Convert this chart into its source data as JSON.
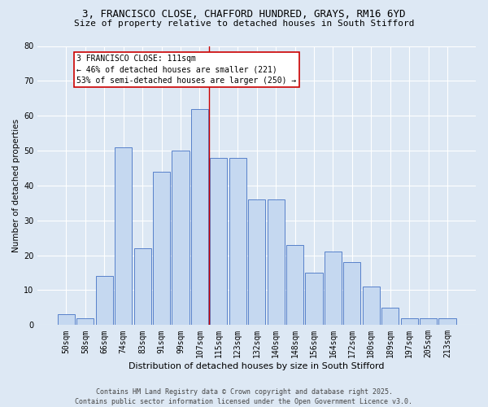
{
  "title": "3, FRANCISCO CLOSE, CHAFFORD HUNDRED, GRAYS, RM16 6YD",
  "subtitle": "Size of property relative to detached houses in South Stifford",
  "xlabel": "Distribution of detached houses by size in South Stifford",
  "ylabel": "Number of detached properties",
  "categories": [
    "50sqm",
    "58sqm",
    "66sqm",
    "74sqm",
    "83sqm",
    "91sqm",
    "99sqm",
    "107sqm",
    "115sqm",
    "123sqm",
    "132sqm",
    "140sqm",
    "148sqm",
    "156sqm",
    "164sqm",
    "172sqm",
    "180sqm",
    "189sqm",
    "197sqm",
    "205sqm",
    "213sqm"
  ],
  "values": [
    3,
    2,
    14,
    51,
    22,
    44,
    50,
    62,
    48,
    48,
    36,
    36,
    23,
    15,
    21,
    18,
    11,
    5,
    2,
    2,
    2
  ],
  "bar_color": "#c5d8f0",
  "bar_edge_color": "#4472c4",
  "vline_x": 7.5,
  "vline_color": "#cc0000",
  "background_color": "#dde8f4",
  "grid_color": "#ffffff",
  "annotation_text": "3 FRANCISCO CLOSE: 111sqm\n← 46% of detached houses are smaller (221)\n53% of semi-detached houses are larger (250) →",
  "annotation_box_color": "#ffffff",
  "annotation_box_edge_color": "#cc0000",
  "footer_line1": "Contains HM Land Registry data © Crown copyright and database right 2025.",
  "footer_line2": "Contains public sector information licensed under the Open Government Licence v3.0.",
  "ylim": [
    0,
    80
  ],
  "yticks": [
    0,
    10,
    20,
    30,
    40,
    50,
    60,
    70,
    80
  ],
  "title_fontsize": 9,
  "subtitle_fontsize": 8,
  "xlabel_fontsize": 8,
  "ylabel_fontsize": 7.5,
  "tick_fontsize": 7,
  "annotation_fontsize": 7,
  "footer_fontsize": 6
}
